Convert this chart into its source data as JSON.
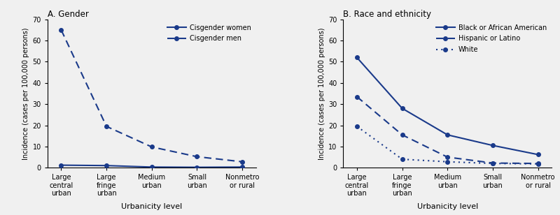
{
  "panel_A_title": "A. Gender",
  "panel_B_title": "B. Race and ethnicity",
  "x_labels": [
    "Large\ncentral\nurban",
    "Large\nfringe\nurban",
    "Medium\nurban",
    "Small\nurban",
    "Nonmetro\nor rural"
  ],
  "xlabel": "Urbanicity level",
  "ylabel": "Incidence (cases per 100,000 persons)",
  "ylim": [
    0,
    70
  ],
  "yticks": [
    0,
    10,
    20,
    30,
    40,
    50,
    60,
    70
  ],
  "panel_A": {
    "cisgender_women": [
      1.2,
      1.0,
      0.3,
      0.2,
      0.3
    ],
    "cisgender_men": [
      65.0,
      19.5,
      9.8,
      5.2,
      2.8
    ]
  },
  "panel_B": {
    "black_african_american": [
      52.0,
      28.0,
      15.5,
      10.5,
      6.2
    ],
    "hispanic_latino": [
      33.5,
      15.5,
      5.0,
      2.2,
      2.0
    ],
    "white": [
      19.5,
      4.0,
      2.8,
      2.0,
      1.8
    ]
  },
  "line_color": "#1a3a8a",
  "marker_size": 4,
  "linewidth": 1.5,
  "legend_fontsize": 7.0,
  "tick_fontsize": 7.0,
  "ylabel_fontsize": 7.0,
  "xlabel_fontsize": 8.0,
  "title_fontsize": 8.5
}
